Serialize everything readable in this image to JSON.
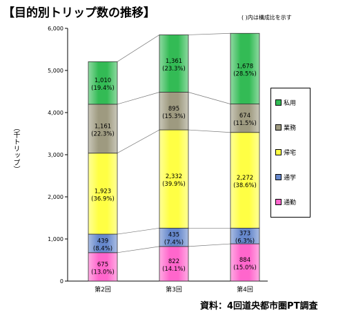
{
  "title": "【目的別トリップ数の推移】",
  "note": "( )内は構成比を示す",
  "source": "資料：4回道央都市圏PT調査",
  "chart_data": {
    "type": "bar",
    "stacked": true,
    "ylabel": "（千トリップ）",
    "ylim": [
      0,
      6000
    ],
    "yticks": [
      0,
      1000,
      2000,
      3000,
      4000,
      5000,
      6000
    ],
    "ytick_labels": [
      "0",
      "1,000",
      "2,000",
      "3,000",
      "4,000",
      "5,000",
      "6,000"
    ],
    "categories": [
      "第2回",
      "第3回",
      "第4回"
    ],
    "series": [
      {
        "name": "通勤",
        "color": "#ff66cc",
        "values": [
          675,
          822,
          884
        ],
        "labels": [
          "675",
          "822",
          "884"
        ],
        "shares": [
          "(13.0%)",
          "(14.1%)",
          "(15.0%)"
        ]
      },
      {
        "name": "通学",
        "color": "#6688cc",
        "values": [
          439,
          435,
          373
        ],
        "labels": [
          "439",
          "435",
          "373"
        ],
        "shares": [
          "(8.4%)",
          "(7.4%)",
          "(6.3%)"
        ]
      },
      {
        "name": "帰宅",
        "color": "#ffff44",
        "values": [
          1923,
          2332,
          2272
        ],
        "labels": [
          "1,923",
          "2,332",
          "2,272"
        ],
        "shares": [
          "(36.9%)",
          "(39.9%)",
          "(38.6%)"
        ]
      },
      {
        "name": "業務",
        "color": "#9e9a80",
        "values": [
          1161,
          895,
          674
        ],
        "labels": [
          "1,161",
          "895",
          "674"
        ],
        "shares": [
          "(22.3%)",
          "(15.3%)",
          "(11.5%)"
        ]
      },
      {
        "name": "私用",
        "color": "#33bb55",
        "values": [
          1010,
          1361,
          1678
        ],
        "labels": [
          "1,010",
          "1,361",
          "1,678"
        ],
        "shares": [
          "(19.4%)",
          "(23.3%)",
          "(28.5%)"
        ]
      }
    ],
    "legend_order": [
      "私用",
      "業務",
      "帰宅",
      "通学",
      "通勤"
    ],
    "legend_position": "right",
    "grid": false
  }
}
